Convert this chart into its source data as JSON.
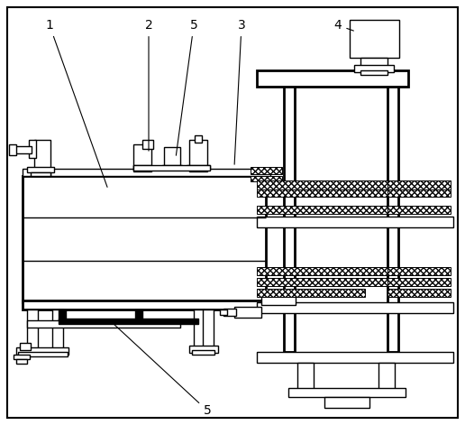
{
  "bg": "#ffffff",
  "lc": "#000000",
  "border_lw": 1.5,
  "lw": 1.0,
  "lw_thick": 2.0
}
